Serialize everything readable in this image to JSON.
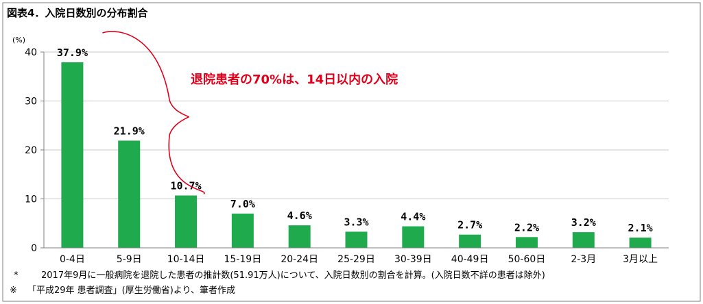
{
  "title": "図表4．入院日数別の分布割合",
  "chart_data": {
    "type": "bar",
    "categories": [
      "0-4日",
      "5-9日",
      "10-14日",
      "15-19日",
      "20-24日",
      "25-29日",
      "30-39日",
      "40-49日",
      "50-60日",
      "2-3月",
      "3月以上"
    ],
    "values": [
      37.9,
      21.9,
      10.7,
      7.0,
      4.6,
      3.3,
      4.4,
      2.7,
      2.2,
      3.2,
      2.1
    ],
    "data_labels": [
      "37.9%",
      "21.9%",
      "10.7%",
      "7.0%",
      "4.6%",
      "3.3%",
      "4.4%",
      "2.7%",
      "2.2%",
      "3.2%",
      "2.1%"
    ],
    "y_unit": "(%)",
    "ylim": [
      0,
      40
    ],
    "yticks": [
      0,
      10,
      20,
      30,
      40
    ],
    "ytick_labels": [
      "0",
      "10",
      "20",
      "30",
      "40"
    ],
    "grid": true,
    "bar_color": "#1fab4d",
    "annotation": {
      "text": "退院患者の70%は、14日以内の入院",
      "color": "#e0001b",
      "spans_categories": [
        "0-4日",
        "10-14日"
      ]
    }
  },
  "notes": {
    "note1_mark": "*",
    "note1_text": "2017年9月に一般病院を退院した患者の推計数(51.91万人)について、入院日数別の割合を計算。(入院日数不詳の患者は除外)",
    "note2_mark": "※",
    "note2_text": "「平成29年 患者調査」(厚生労働省)より、筆者作成"
  }
}
